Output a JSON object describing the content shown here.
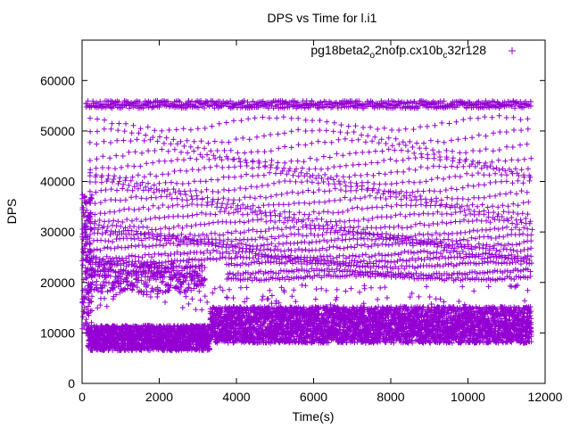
{
  "chart_data": {
    "type": "scatter",
    "title": "DPS vs Time for l.i1",
    "xlabel": "Time(s)",
    "ylabel": "DPS",
    "xlim": [
      0,
      12000
    ],
    "ylim": [
      0,
      68000
    ],
    "x_ticks": [
      "0",
      "2000",
      "4000",
      "6000",
      "8000",
      "10000",
      "12000"
    ],
    "x_tick_values": [
      0,
      2000,
      4000,
      6000,
      8000,
      10000,
      12000
    ],
    "y_ticks": [
      "0",
      "10000",
      "20000",
      "30000",
      "40000",
      "50000",
      "60000"
    ],
    "y_tick_values": [
      0,
      10000,
      20000,
      30000,
      40000,
      50000,
      60000
    ],
    "grid": false,
    "legend_position": "top-right",
    "marker": "+",
    "color": "#9400d3",
    "series": [
      {
        "name": "pg18beta2_o2nofp.cx10b_c32r128",
        "name_parts": [
          "pg18beta2",
          "o",
          "2nofp.cx10b",
          "c",
          "32r128"
        ],
        "x_range": [
          0,
          11650
        ],
        "dense_band": {
          "low": [
            6000,
            9000
          ],
          "high": [
            12000,
            14500
          ]
        },
        "upper_bands": [
          21000,
          22000,
          23500,
          24500,
          25500,
          27000,
          28000,
          29000,
          30000,
          31500,
          33000,
          34500,
          36000,
          37500,
          39000,
          40500,
          42000,
          43500,
          45000,
          47000,
          49000,
          51500
        ],
        "top_cluster": [
          54500,
          56000
        ],
        "x_start": 0,
        "x_end": 11650
      }
    ]
  }
}
